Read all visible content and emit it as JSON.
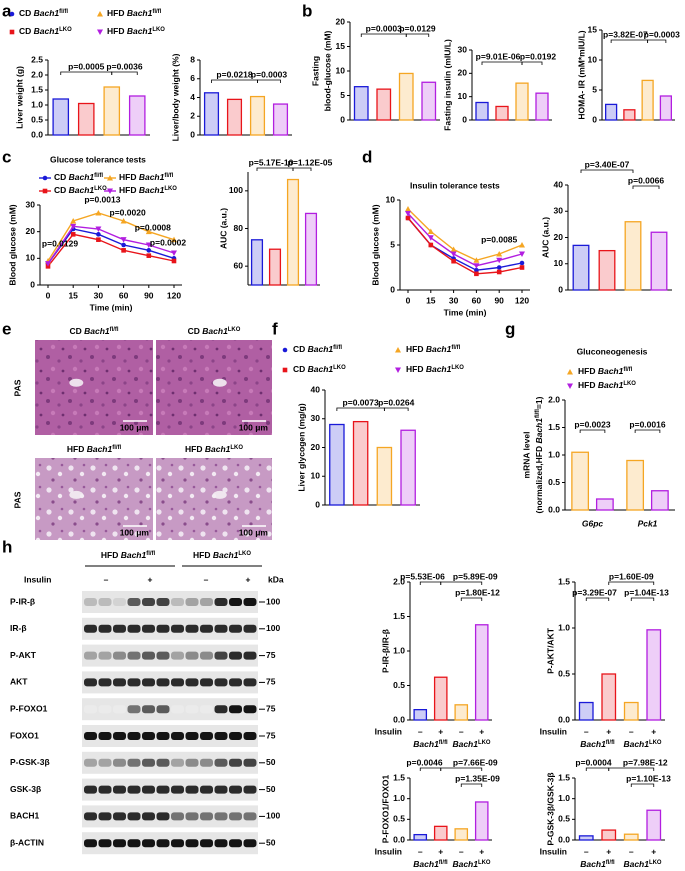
{
  "panels": [
    "a",
    "b",
    "c",
    "d",
    "e",
    "f",
    "g",
    "h"
  ],
  "legend": [
    {
      "name": "CD Bach1fl/fl",
      "color": "#1a1ad8"
    },
    {
      "name": "CD Bach1LKO",
      "color": "#e8141a"
    },
    {
      "name": "HFD Bach1fl/fl",
      "color": "#f5a623"
    },
    {
      "name": "HFD Bach1LKO",
      "color": "#b21ee0"
    }
  ],
  "histology": {
    "stain": [
      "PAS",
      "PAS"
    ],
    "images": [
      {
        "label": "CD Bach1fl/fl",
        "scale": "100 μm"
      },
      {
        "label": "CD Bach1LKO",
        "scale": "100 μm"
      },
      {
        "label": "HFD Bach1fl/fl",
        "scale": "100 μm"
      },
      {
        "label": "HFD Bach1LKO",
        "scale": "100 μm"
      }
    ]
  },
  "western_blot": {
    "headers": [
      "HFD Bach1fl/fl",
      "HFD Bach1LKO"
    ],
    "insulin_label": "Insulin",
    "treatments": [
      "–",
      "+",
      "–",
      "+"
    ],
    "kda_label": "kDa",
    "rows": [
      {
        "protein": "P-IR-β",
        "kda": "100"
      },
      {
        "protein": "IR-β",
        "kda": "100"
      },
      {
        "protein": "P-AKT",
        "kda": "75"
      },
      {
        "protein": "AKT",
        "kda": "75"
      },
      {
        "protein": "P-FOXO1",
        "kda": "75"
      },
      {
        "protein": "FOXO1",
        "kda": "75"
      },
      {
        "protein": "P-GSK-3β",
        "kda": "50"
      },
      {
        "protein": "GSK-3β",
        "kda": "50"
      },
      {
        "protein": "BACH1",
        "kda": "100"
      },
      {
        "protein": "β-ACTIN",
        "kda": "50"
      }
    ]
  },
  "chart_data": [
    {
      "type": "bar",
      "ylabel": [
        "Liver weight (g)"
      ],
      "categories": [
        null,
        null,
        null,
        null
      ],
      "values": [
        1.2,
        1.05,
        1.6,
        1.3
      ],
      "colors": [
        "#1a1ad8",
        "#e8141a",
        "#f5a623",
        "#b21ee0"
      ],
      "ylim": [
        0,
        2.5
      ],
      "yticks": [
        {
          "value": 0,
          "label": "0.0"
        },
        0.5,
        {
          "value": 1,
          "label": "1.0"
        },
        1.5,
        {
          "value": 2,
          "label": "2.0"
        },
        2.5
      ],
      "annotations": [
        "p=0.0005",
        "p=0.0036"
      ]
    },
    {
      "type": "bar",
      "ylabel": [
        "Liver/body weight (%)"
      ],
      "categories": [
        null,
        null,
        null,
        null
      ],
      "values": [
        4.5,
        3.8,
        4.1,
        3.3
      ],
      "colors": [
        "#1a1ad8",
        "#e8141a",
        "#f5a623",
        "#b21ee0"
      ],
      "ylim": [
        0,
        8
      ],
      "yticks": [
        0,
        2,
        4,
        6,
        8
      ],
      "annotations": [
        "p=0.0218",
        "p=0.0003"
      ]
    },
    {
      "type": "bar",
      "ylabel": [
        "Fasting",
        "blood-glucose (mM)"
      ],
      "categories": [
        null,
        null,
        null,
        null
      ],
      "values": [
        6.8,
        6.3,
        9.5,
        7.7
      ],
      "colors": [
        "#1a1ad8",
        "#e8141a",
        "#f5a623",
        "#b21ee0"
      ],
      "ylim": [
        0,
        20
      ],
      "yticks": [
        0,
        5,
        10,
        15,
        20
      ],
      "annotations": [
        "p=0.0003",
        "p=0.0129"
      ]
    },
    {
      "type": "bar",
      "ylabel": [
        "Fasting insulin (mIU/L)"
      ],
      "categories": [
        null,
        null,
        null,
        null
      ],
      "values": [
        7.5,
        5.8,
        15.8,
        11.5
      ],
      "colors": [
        "#1a1ad8",
        "#e8141a",
        "#f5a623",
        "#b21ee0"
      ],
      "ylim": [
        0,
        30
      ],
      "yticks": [
        0,
        10,
        20,
        30
      ],
      "annotations": [
        "p=9.01E-06",
        "p=0.0192"
      ]
    },
    {
      "type": "bar",
      "ylabel": [
        "HOMA- IR (mM*mIU/L)"
      ],
      "categories": [
        null,
        null,
        null,
        null
      ],
      "values": [
        2.6,
        1.7,
        6.6,
        4.0
      ],
      "colors": [
        "#1a1ad8",
        "#e8141a",
        "#f5a623",
        "#b21ee0"
      ],
      "ylim": [
        0,
        15
      ],
      "yticks": [
        0,
        5,
        10,
        15
      ],
      "annotations": [
        "p=3.82E-07",
        "p=0.0003"
      ]
    },
    {
      "type": "line",
      "title": "Glucose tolerance tests",
      "xlabel": "Time (min)",
      "ylabel": [
        "Blood glucose (mM)"
      ],
      "categories": [
        "0",
        "15",
        "30",
        "60",
        "90",
        "120"
      ],
      "series": [
        {
          "name": "CD Bach1fl/fl",
          "color": "#1a1ad8",
          "values": [
            8,
            21,
            19,
            15,
            13,
            10
          ]
        },
        {
          "name": "CD Bach1LKO",
          "color": "#e8141a",
          "values": [
            7,
            19,
            17,
            13,
            11,
            9
          ]
        },
        {
          "name": "HFD Bach1fl/fl",
          "color": "#f5a623",
          "values": [
            9,
            24,
            27,
            24,
            20,
            17
          ]
        },
        {
          "name": "HFD Bach1LKO",
          "color": "#b21ee0",
          "values": [
            8,
            22,
            21,
            17,
            15,
            12
          ]
        }
      ],
      "ylim": [
        0,
        30
      ],
      "yticks": [
        0,
        10,
        20,
        30
      ],
      "annotations": [
        "p=0.0129",
        "p=0.0013",
        "p=0.0020",
        "p=0.0008",
        "p=0.0002"
      ]
    },
    {
      "type": "bar",
      "ylabel": [
        "AUC (a.u.)"
      ],
      "categories": [
        null,
        null,
        null,
        null
      ],
      "values": [
        74,
        69,
        106,
        88
      ],
      "colors": [
        "#1a1ad8",
        "#e8141a",
        "#f5a623",
        "#b21ee0"
      ],
      "ylim": [
        50,
        110
      ],
      "yticks": [
        60,
        80,
        100
      ],
      "annotations": [
        "p=5.17E-10",
        "p=1.12E-05"
      ]
    },
    {
      "type": "line",
      "title": "Insulin tolerance tests",
      "xlabel": "Time (min)",
      "ylabel": [
        "Blood glucose (mM)"
      ],
      "categories": [
        "0",
        "15",
        "30",
        "60",
        "90",
        "120"
      ],
      "series": [
        {
          "name": "CD Bach1fl/fl",
          "color": "#1a1ad8",
          "values": [
            8,
            5,
            3.5,
            2.2,
            2.5,
            3
          ]
        },
        {
          "name": "CD Bach1LKO",
          "color": "#e8141a",
          "values": [
            8,
            5,
            3.2,
            1.8,
            2,
            2.5
          ]
        },
        {
          "name": "HFD Bach1fl/fl",
          "color": "#f5a623",
          "values": [
            9,
            6.5,
            4.5,
            3.3,
            4,
            5
          ]
        },
        {
          "name": "HFD Bach1LKO",
          "color": "#b21ee0",
          "values": [
            8.5,
            5.8,
            4,
            2.7,
            3.3,
            4
          ]
        }
      ],
      "ylim": [
        0,
        10
      ],
      "yticks": [
        0,
        5,
        10
      ],
      "annotations": [
        "p=0.0085"
      ]
    },
    {
      "type": "bar",
      "ylabel": [
        "AUC (a.u.)"
      ],
      "categories": [
        null,
        null,
        null,
        null
      ],
      "values": [
        17,
        15,
        26,
        22
      ],
      "colors": [
        "#1a1ad8",
        "#e8141a",
        "#f5a623",
        "#b21ee0"
      ],
      "ylim": [
        0,
        40
      ],
      "yticks": [
        0,
        10,
        20,
        30,
        40
      ],
      "annotations": [
        "p=3.40E-07",
        "p=0.0066"
      ]
    },
    {
      "type": "bar",
      "ylabel": [
        "Liver glycogen (mg/g)"
      ],
      "categories": [
        null,
        null,
        null,
        null
      ],
      "values": [
        28,
        29,
        20,
        26
      ],
      "colors": [
        "#1a1ad8",
        "#e8141a",
        "#f5a623",
        "#b21ee0"
      ],
      "ylim": [
        0,
        40
      ],
      "yticks": [
        0,
        10,
        20,
        30,
        40
      ],
      "annotations": [
        "p=0.0073",
        "p=0.0264"
      ],
      "legend": [
        {
          "name": "CD Bach1fl/fl",
          "color": "#1a1ad8"
        },
        {
          "name": "CD Bach1LKO",
          "color": "#e8141a"
        },
        {
          "name": "HFD Bach1fl/fl",
          "color": "#f5a623"
        },
        {
          "name": "HFD Bach1LKO",
          "color": "#b21ee0"
        }
      ]
    },
    {
      "type": "bar",
      "title": "Gluconeogenesis",
      "ylabel": [
        "mRNA  level",
        "(normalized,HFD Bach1fl/fl=1)"
      ],
      "categories": [
        "G6pc",
        "Pck1"
      ],
      "series": [
        {
          "name": "HFD Bach1fl/fl",
          "color": "#f5a623",
          "values": [
            1.05,
            0.9
          ]
        },
        {
          "name": "HFD Bach1LKO",
          "color": "#b21ee0",
          "values": [
            0.2,
            0.35
          ]
        }
      ],
      "ylim": [
        0,
        2
      ],
      "yticks": [
        {
          "value": 0,
          "label": "0.0"
        },
        0.5,
        {
          "value": 1,
          "label": "1.0"
        },
        1.5,
        {
          "value": 2,
          "label": "2.0"
        }
      ],
      "annotations": [
        "p=0.0023",
        "p=0.0016"
      ]
    },
    {
      "type": "bar",
      "ylabel": [
        "P-IR-β/IR-β"
      ],
      "row_label": "Insulin",
      "categories": [
        "–",
        "+",
        "–",
        "+"
      ],
      "groups": [
        "Bach1fl/fl",
        "Bach1LKO"
      ],
      "values": [
        0.15,
        0.62,
        0.22,
        1.38
      ],
      "colors": [
        "#1a1ad8",
        "#e8141a",
        "#f5a623",
        "#b21ee0"
      ],
      "ylim": [
        0,
        2
      ],
      "yticks": [
        {
          "value": 0,
          "label": "0.0"
        },
        0.5,
        {
          "value": 1,
          "label": "1.0"
        },
        1.5,
        {
          "value": 2,
          "label": "2.0"
        }
      ],
      "annotations": [
        "p=5.53E-06",
        "p=5.89E-09",
        "p=1.80E-12"
      ]
    },
    {
      "type": "bar",
      "ylabel": [
        "P-AKT/AKT"
      ],
      "row_label": "Insulin",
      "categories": [
        "–",
        "+",
        "–",
        "+"
      ],
      "groups": [
        "Bach1fl/fl",
        "Bach1LKO"
      ],
      "values": [
        0.19,
        0.5,
        0.19,
        0.98
      ],
      "colors": [
        "#1a1ad8",
        "#e8141a",
        "#f5a623",
        "#b21ee0"
      ],
      "ylim": [
        0,
        1.5
      ],
      "yticks": [
        {
          "value": 0,
          "label": "0.0"
        },
        0.5,
        {
          "value": 1,
          "label": "1.0"
        },
        1.5
      ],
      "annotations": [
        "p=1.60E-09",
        "p=3.29E-07",
        "p=1.04E-13"
      ]
    },
    {
      "type": "bar",
      "ylabel": [
        "P-FOXO1/FOXO1"
      ],
      "row_label": "Insulin",
      "categories": [
        "–",
        "+",
        "–",
        "+"
      ],
      "groups": [
        "Bach1fl/fl",
        "Bach1LKO"
      ],
      "values": [
        0.13,
        0.33,
        0.27,
        0.92
      ],
      "colors": [
        "#1a1ad8",
        "#e8141a",
        "#f5a623",
        "#b21ee0"
      ],
      "ylim": [
        0,
        1.5
      ],
      "yticks": [
        {
          "value": 0,
          "label": "0.0"
        },
        0.5,
        {
          "value": 1,
          "label": "1.0"
        },
        1.5
      ],
      "annotations": [
        "p=0.0046",
        "p=7.66E-09",
        "p=1.35E-09"
      ]
    },
    {
      "type": "bar",
      "ylabel": [
        "P-GSK-3β/GSK-3β"
      ],
      "row_label": "Insulin",
      "categories": [
        "–",
        "+",
        "–",
        "+"
      ],
      "groups": [
        "Bach1fl/fl",
        "Bach1LKO"
      ],
      "values": [
        0.1,
        0.24,
        0.14,
        0.72
      ],
      "colors": [
        "#1a1ad8",
        "#e8141a",
        "#f5a623",
        "#b21ee0"
      ],
      "ylim": [
        0,
        1.5
      ],
      "yticks": [
        {
          "value": 0,
          "label": "0.0"
        },
        0.5,
        {
          "value": 1,
          "label": "1.0"
        },
        1.5
      ],
      "annotations": [
        "p=0.0004",
        "p=7.98E-12",
        "p=1.10E-13"
      ]
    }
  ]
}
